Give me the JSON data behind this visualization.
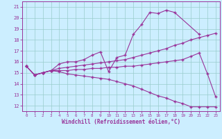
{
  "xlabel": "Windchill (Refroidissement éolien,°C)",
  "background_color": "#cceeff",
  "grid_color": "#99cccc",
  "line_color": "#993399",
  "xlim": [
    -0.5,
    23.5
  ],
  "ylim": [
    11.5,
    21.5
  ],
  "yticks": [
    12,
    13,
    14,
    15,
    16,
    17,
    18,
    19,
    20,
    21
  ],
  "xticks": [
    0,
    1,
    2,
    3,
    4,
    5,
    6,
    7,
    8,
    9,
    10,
    11,
    12,
    13,
    14,
    15,
    16,
    17,
    18,
    19,
    20,
    21,
    22,
    23
  ],
  "line1_x": [
    0,
    1,
    2,
    3,
    4,
    5,
    6,
    7,
    8,
    9,
    10,
    11,
    12,
    13,
    14,
    15,
    16,
    17,
    18,
    21
  ],
  "line1_y": [
    15.6,
    14.8,
    15.0,
    15.2,
    15.8,
    16.0,
    16.0,
    16.2,
    16.6,
    16.9,
    15.1,
    16.4,
    16.6,
    18.5,
    19.4,
    20.5,
    20.4,
    20.7,
    20.5,
    18.5
  ],
  "line2_x": [
    0,
    1,
    2,
    3,
    4,
    5,
    6,
    7,
    8,
    9,
    10,
    11,
    12,
    13,
    14,
    15,
    16,
    17,
    18,
    19,
    20,
    21,
    22,
    23
  ],
  "line2_y": [
    15.6,
    14.8,
    15.0,
    15.2,
    15.4,
    15.5,
    15.6,
    15.7,
    15.8,
    15.9,
    16.0,
    16.1,
    16.2,
    16.4,
    16.6,
    16.8,
    17.0,
    17.2,
    17.5,
    17.7,
    18.0,
    18.2,
    18.4,
    18.6
  ],
  "line3_x": [
    0,
    1,
    2,
    3,
    4,
    5,
    6,
    7,
    8,
    9,
    10,
    11,
    12,
    13,
    14,
    15,
    16,
    17,
    18,
    19,
    20,
    21,
    22,
    23
  ],
  "line3_y": [
    15.6,
    14.8,
    15.0,
    15.2,
    15.2,
    15.2,
    15.3,
    15.3,
    15.4,
    15.4,
    15.5,
    15.5,
    15.6,
    15.6,
    15.7,
    15.8,
    15.9,
    16.0,
    16.1,
    16.2,
    16.5,
    16.8,
    14.9,
    12.8
  ],
  "line4_x": [
    0,
    1,
    2,
    3,
    4,
    5,
    6,
    7,
    8,
    9,
    10,
    11,
    12,
    13,
    14,
    15,
    16,
    17,
    18,
    19,
    20,
    21,
    22,
    23
  ],
  "line4_y": [
    15.6,
    14.8,
    15.0,
    15.2,
    15.1,
    14.9,
    14.8,
    14.7,
    14.6,
    14.5,
    14.4,
    14.2,
    14.0,
    13.8,
    13.5,
    13.2,
    12.9,
    12.7,
    12.4,
    12.2,
    11.9,
    11.9,
    11.9,
    11.9
  ]
}
